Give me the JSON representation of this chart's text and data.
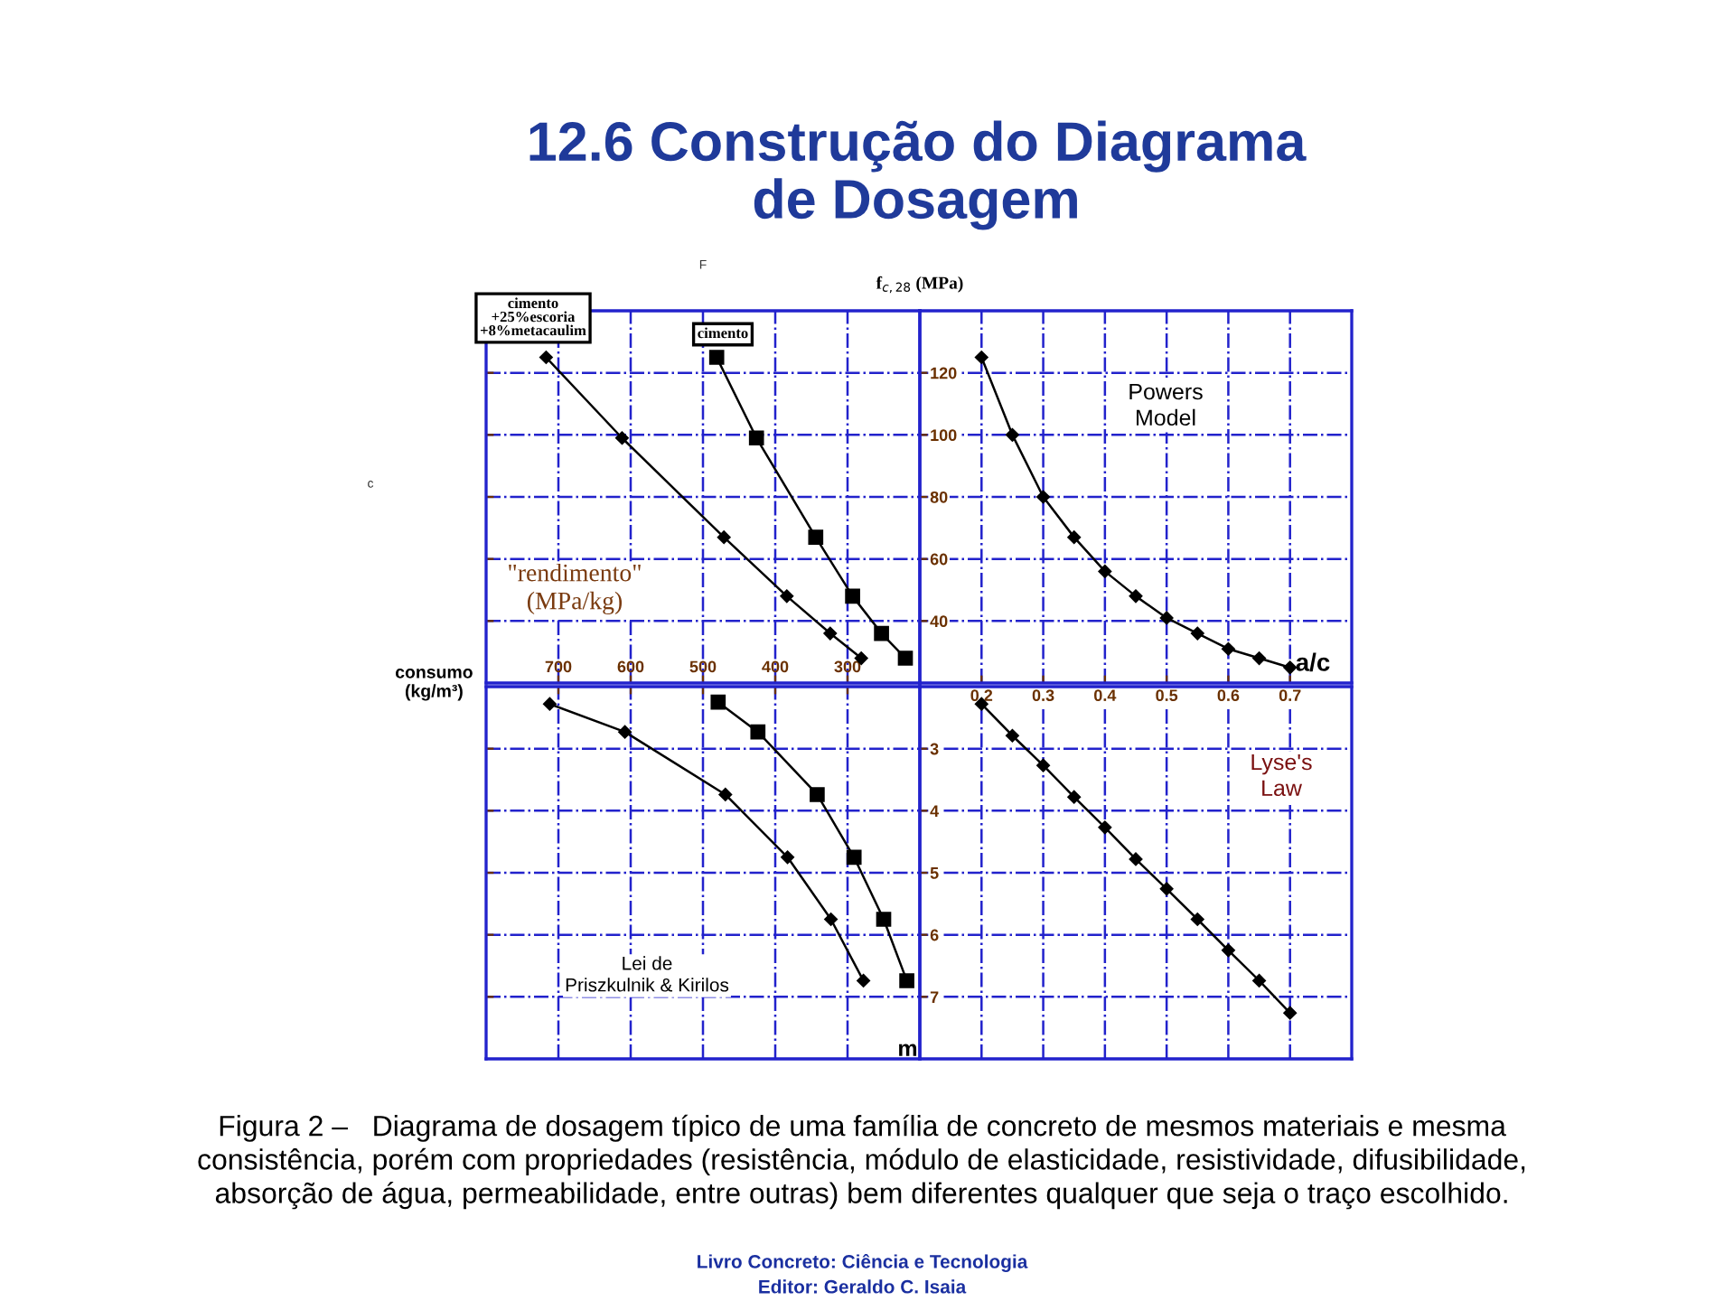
{
  "chart_data": [
    {
      "type": "line",
      "title": "12.6 Construção do Diagrama\nde Dosagem",
      "xlabel": "consumo\n(kg/m³)",
      "xlim": [
        800,
        200
      ],
      "xticks": [
        700,
        600,
        500,
        400,
        300
      ],
      "ylim": [
        20,
        140
      ],
      "yticks": [
        40,
        60,
        80,
        100,
        120
      ],
      "grid": true,
      "tick_labels": "x",
      "annotations": [
        "\"rendimento\"\n(MPa/kg)",
        "F",
        "c",
        "Figura 2 –   Diagrama de dosagem típico de uma família de concreto de mesmos materiais e mesma\nconsistência, porém com propriedades (resistência, módulo de elasticidade, resistividade, difusibilidade,\nabsorção de água, permeabilidade, entre outras) bem diferentes qualquer que seja o traço escolhido.",
        "Livro Concreto: Ciência e Tecnologia",
        "Editor: Geraldo C. Isaia"
      ],
      "series": [
        {
          "name": "cimento\n+25%escoria\n+8%metacaulim",
          "color": "#000000",
          "marker": "diamond",
          "x": [
            717,
            612,
            471,
            384,
            324,
            281
          ],
          "values": [
            125,
            99,
            67,
            48,
            36,
            28
          ]
        },
        {
          "name": "cimento",
          "color": "#000000",
          "marker": "square",
          "x": [
            481,
            426,
            344,
            293,
            253,
            220
          ],
          "values": [
            125,
            99,
            67,
            48,
            36,
            28
          ]
        }
      ]
    },
    {
      "type": "line",
      "ylabel": "f$_{c,28}$ (MPa)",
      "xlabel": "a/c",
      "xlim": [
        0.1,
        0.8
      ],
      "xticks": [
        0.2,
        0.3,
        0.4,
        0.5,
        0.6,
        0.7
      ],
      "ylim": [
        20,
        140
      ],
      "yticks": [
        40,
        60,
        80,
        100,
        120
      ],
      "grid": true,
      "tick_labels": "y",
      "annotations": [
        "Powers\nModel"
      ],
      "series": [
        {
          "color": "#000000",
          "marker": "diamond",
          "x": [
            0.2,
            0.25,
            0.3,
            0.35,
            0.4,
            0.45,
            0.5,
            0.55,
            0.6,
            0.65,
            0.7
          ],
          "values": [
            125,
            100,
            80,
            67,
            56,
            48,
            41,
            36,
            31,
            28,
            25
          ]
        }
      ]
    },
    {
      "type": "line",
      "xlim": [
        800,
        200
      ],
      "xticks": [
        700,
        600,
        500,
        400,
        300
      ],
      "ylim": [
        8,
        2
      ],
      "yticks": [
        3,
        4,
        5,
        6,
        7
      ],
      "grid": true,
      "tick_labels": false,
      "annotations": [
        "Lei de\nPriszkulnik & Kirilos"
      ],
      "series": [
        {
          "color": "#000000",
          "marker": "diamond",
          "x": [
            712,
            608,
            469,
            383,
            323,
            278
          ],
          "values": [
            2.28,
            2.73,
            3.74,
            4.75,
            5.75,
            6.74
          ]
        },
        {
          "color": "#000000",
          "marker": "square",
          "x": [
            479,
            424,
            342,
            291,
            250,
            218
          ],
          "values": [
            2.25,
            2.73,
            3.74,
            4.75,
            5.75,
            6.74
          ]
        }
      ]
    },
    {
      "type": "line",
      "ylabel": "m",
      "xlim": [
        0.1,
        0.8
      ],
      "xticks": [
        0.2,
        0.3,
        0.4,
        0.5,
        0.6,
        0.7
      ],
      "ylim": [
        8,
        2
      ],
      "yticks": [
        3,
        4,
        5,
        6,
        7
      ],
      "grid": true,
      "annotations": [
        "Lyse's\nLaw"
      ],
      "series": [
        {
          "color": "#000000",
          "marker": "diamond",
          "x": [
            0.2,
            0.25,
            0.3,
            0.35,
            0.4,
            0.45,
            0.5,
            0.55,
            0.6,
            0.65,
            0.7
          ],
          "values": [
            2.28,
            2.79,
            3.27,
            3.78,
            4.27,
            4.78,
            5.26,
            5.75,
            6.25,
            6.74,
            7.26
          ]
        }
      ]
    }
  ]
}
